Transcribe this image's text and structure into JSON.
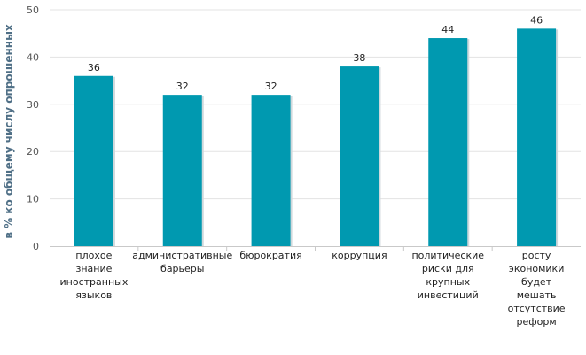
{
  "chart_data": {
    "type": "bar",
    "ylabel": "в % ко общему числу опрошенных",
    "ylim": [
      0,
      50
    ],
    "yticks": [
      0,
      10,
      20,
      30,
      40,
      50
    ],
    "grid": true,
    "bar_color": "#0099b0",
    "categories": [
      [
        "плохое",
        "знание",
        "иностранных",
        "языков"
      ],
      [
        "административные",
        "барьеры"
      ],
      [
        "бюрократия"
      ],
      [
        "коррупция"
      ],
      [
        "политические",
        "риски для",
        "крупных",
        "инвестиций"
      ],
      [
        "росту",
        "экономики",
        "будет",
        "мешать",
        "отсутствие",
        "реформ"
      ]
    ],
    "values": [
      36,
      32,
      32,
      38,
      44,
      46
    ]
  }
}
